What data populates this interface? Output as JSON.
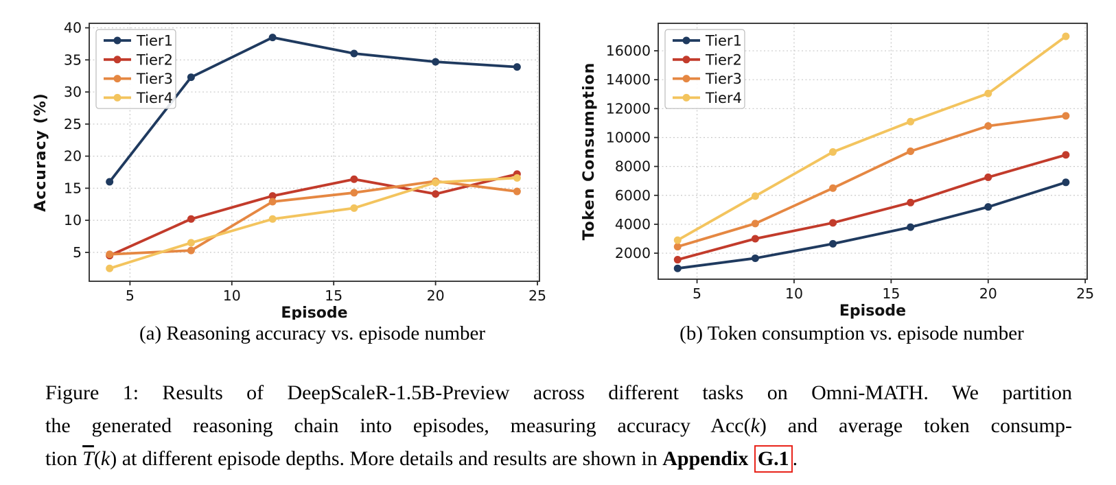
{
  "figure": {
    "caption_a": "(a) Reasoning accuracy vs. episode number",
    "caption_b": "(b) Token consumption vs. episode number",
    "caption_lines": [
      {
        "justify": true,
        "segments": [
          {
            "t": "Figure 1: Results of DeepScaleR-1.5B-Preview across different tasks on Omni-MATH. We partition"
          }
        ]
      },
      {
        "justify": true,
        "segments": [
          {
            "t": "the generated reasoning chain into episodes, measuring accuracy "
          },
          {
            "t": "Acc("
          },
          {
            "t": "k",
            "style": "italic"
          },
          {
            "t": ")"
          },
          {
            "t": " and average token consump-"
          }
        ]
      },
      {
        "justify": false,
        "segments": [
          {
            "t": "tion "
          },
          {
            "t": "T",
            "style": "overline-italic"
          },
          {
            "t": "("
          },
          {
            "t": "k",
            "style": "italic"
          },
          {
            "t": ")"
          },
          {
            "t": " at different episode depths. More details and results are shown in "
          },
          {
            "t": "Appendix ",
            "style": "bold"
          },
          {
            "t": "G.1",
            "style": "boxed"
          },
          {
            "t": "."
          }
        ]
      }
    ],
    "appendix_link_label": "G.1",
    "link_box_color": "#e8231a"
  },
  "chart_data": [
    {
      "type": "line",
      "title": "",
      "xlabel": "Episode",
      "ylabel": "Accuracy (%)",
      "x": [
        4,
        8,
        12,
        16,
        20,
        24
      ],
      "series": [
        {
          "name": "Tier1",
          "color": "#1f3a5f",
          "values": [
            16.0,
            32.3,
            38.5,
            36.0,
            34.7,
            33.9
          ]
        },
        {
          "name": "Tier2",
          "color": "#c23b2b",
          "values": [
            4.5,
            10.2,
            13.8,
            16.4,
            14.1,
            17.2
          ]
        },
        {
          "name": "Tier3",
          "color": "#e58742",
          "values": [
            4.7,
            5.3,
            12.9,
            14.3,
            16.1,
            14.5
          ]
        },
        {
          "name": "Tier4",
          "color": "#f3c45e",
          "values": [
            2.5,
            6.5,
            10.2,
            11.9,
            15.9,
            16.6
          ]
        }
      ],
      "xlim": [
        3,
        25.1
      ],
      "ylim": [
        0.5,
        40.7
      ],
      "xticks": [
        5,
        10,
        15,
        20,
        25
      ],
      "yticks": [
        5,
        10,
        15,
        20,
        25,
        30,
        35,
        40
      ],
      "grid": true,
      "legend_position": "upper left",
      "marker": "circle"
    },
    {
      "type": "line",
      "title": "",
      "xlabel": "Episode",
      "ylabel": "Token Consumption",
      "x": [
        4,
        8,
        12,
        16,
        20,
        24
      ],
      "series": [
        {
          "name": "Tier1",
          "color": "#1f3a5f",
          "values": [
            950,
            1650,
            2650,
            3800,
            5200,
            6900
          ]
        },
        {
          "name": "Tier2",
          "color": "#c23b2b",
          "values": [
            1550,
            3000,
            4100,
            5500,
            7250,
            8800
          ]
        },
        {
          "name": "Tier3",
          "color": "#e58742",
          "values": [
            2450,
            4050,
            6500,
            9050,
            10800,
            11500
          ]
        },
        {
          "name": "Tier4",
          "color": "#f3c45e",
          "values": [
            2900,
            5950,
            9000,
            11100,
            13050,
            17000
          ]
        }
      ],
      "xlim": [
        3,
        25.1
      ],
      "ylim": [
        200,
        17900
      ],
      "xticks": [
        5,
        10,
        15,
        20,
        25
      ],
      "yticks": [
        2000,
        4000,
        6000,
        8000,
        10000,
        12000,
        14000,
        16000
      ],
      "grid": true,
      "legend_position": "upper left",
      "marker": "circle"
    }
  ],
  "style_colors": {
    "background": "#ffffff",
    "grid": "#c8c8c8",
    "spine": "#2a2a2a",
    "tick_text": "#111111",
    "legend_border": "#bbbbbb"
  }
}
